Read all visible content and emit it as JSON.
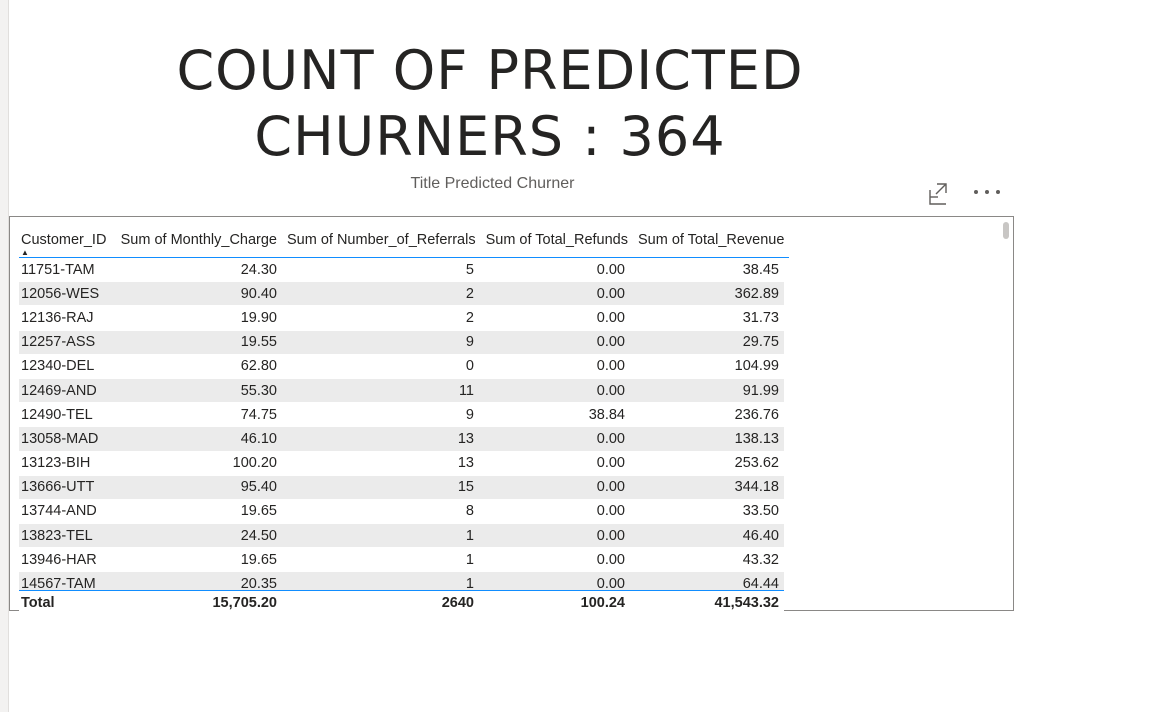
{
  "title_card": {
    "line1": "COUNT OF PREDICTED",
    "line2": "CHURNERS : 364"
  },
  "subtitle": "Title Predicted Churner",
  "visual_header": {
    "focus_icon": "focus-mode-icon",
    "more_icon": "more-options-icon"
  },
  "table": {
    "columns": [
      "Customer_ID",
      "Sum of Monthly_Charge",
      "Sum of Number_of_Referrals",
      "Sum of Total_Refunds",
      "Sum of Total_Revenue"
    ],
    "sort_indicator": "▲",
    "rows": [
      [
        "11751-TAM",
        "24.30",
        "5",
        "0.00",
        "38.45"
      ],
      [
        "12056-WES",
        "90.40",
        "2",
        "0.00",
        "362.89"
      ],
      [
        "12136-RAJ",
        "19.90",
        "2",
        "0.00",
        "31.73"
      ],
      [
        "12257-ASS",
        "19.55",
        "9",
        "0.00",
        "29.75"
      ],
      [
        "12340-DEL",
        "62.80",
        "0",
        "0.00",
        "104.99"
      ],
      [
        "12469-AND",
        "55.30",
        "11",
        "0.00",
        "91.99"
      ],
      [
        "12490-TEL",
        "74.75",
        "9",
        "38.84",
        "236.76"
      ],
      [
        "13058-MAD",
        "46.10",
        "13",
        "0.00",
        "138.13"
      ],
      [
        "13123-BIH",
        "100.20",
        "13",
        "0.00",
        "253.62"
      ],
      [
        "13666-UTT",
        "95.40",
        "15",
        "0.00",
        "344.18"
      ],
      [
        "13744-AND",
        "19.65",
        "8",
        "0.00",
        "33.50"
      ],
      [
        "13823-TEL",
        "24.50",
        "1",
        "0.00",
        "46.40"
      ],
      [
        "13946-HAR",
        "19.65",
        "1",
        "0.00",
        "43.32"
      ],
      [
        "14567-TAM",
        "20.35",
        "1",
        "0.00",
        "64.44"
      ]
    ],
    "total": [
      "Total",
      "15,705.20",
      "2640",
      "100.24",
      "41,543.32"
    ]
  },
  "colors": {
    "accent_line": "#118dff",
    "band_row": "#ebebeb",
    "border": "#8a8886"
  }
}
